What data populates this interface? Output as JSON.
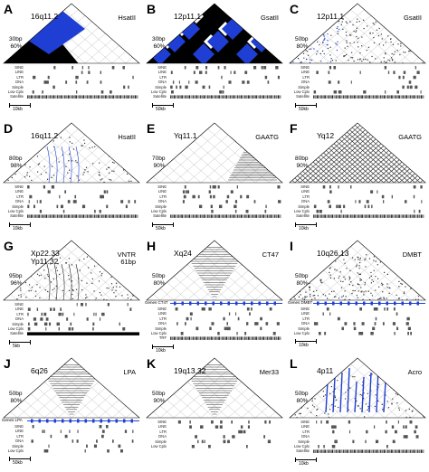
{
  "colors": {
    "highlight": "#1f3fd4",
    "dense": "#000000",
    "grid": "#888888"
  },
  "panels": [
    {
      "id": "A",
      "locus": "16q11.2",
      "motif": "HsatII",
      "monomer": "30bp",
      "identity": "60%",
      "scale": "10kb",
      "tracks": [
        "SINE",
        "LINE",
        "LTR",
        "DNA",
        "Simple",
        "Low Cplx",
        "Satellite"
      ],
      "genes": ""
    },
    {
      "id": "B",
      "locus": "12p11.1",
      "motif": "GsatII",
      "monomer": "30bp",
      "identity": "60%",
      "scale": "50kb",
      "tracks": [
        "SINE",
        "LINE",
        "LTR",
        "DNA",
        "Simple",
        "Low Cplx",
        "Satellite"
      ],
      "genes": ""
    },
    {
      "id": "C",
      "locus": "12p11.1",
      "motif": "GsatII",
      "monomer": "50bp",
      "identity": "80%",
      "scale": "50kb",
      "tracks": [
        "SINE",
        "LINE",
        "LTR",
        "DNA",
        "Simple",
        "Low Cplx",
        "Satellite"
      ],
      "genes": ""
    },
    {
      "id": "D",
      "locus": "16q11.2",
      "motif": "HsatII",
      "monomer": "80bp",
      "identity": "98%",
      "scale": "10kb",
      "tracks": [
        "SINE",
        "LINE",
        "LTR",
        "DNA",
        "Simple",
        "Low Cplx",
        "Satellite"
      ],
      "genes": ""
    },
    {
      "id": "E",
      "locus": "Yq11.1",
      "motif": "GAATG",
      "monomer": "70bp",
      "identity": "90%",
      "scale": "50kb",
      "tracks": [
        "SINE",
        "LINE",
        "LTR",
        "DNA",
        "Simple",
        "Low Cplx",
        "Satellite"
      ],
      "genes": ""
    },
    {
      "id": "F",
      "locus": "Yq12",
      "motif": "GAATG",
      "monomer": "80bp",
      "identity": "90%",
      "scale": "10kb",
      "tracks": [
        "SINE",
        "LINE",
        "LTR",
        "DNA",
        "Simple",
        "Low Cplx",
        "Satellite"
      ],
      "genes": ""
    },
    {
      "id": "G",
      "locus": "Xp22.33\nYp11.32",
      "motif": "VNTR\n61bp",
      "monomer": "95bp",
      "identity": "96%",
      "scale": "5kb",
      "tracks": [
        "SINE",
        "LINE",
        "LTR",
        "DNA",
        "Simple",
        "Low Cplx",
        "Satellite"
      ],
      "genes": ""
    },
    {
      "id": "H",
      "locus": "Xq24",
      "motif": "CT47",
      "monomer": "50bp",
      "identity": "80%",
      "scale": "10kb",
      "tracks": [
        "SINE",
        "LINE",
        "LTR",
        "DNA",
        "Simple",
        "Low Cplx",
        "TRF"
      ],
      "genes": "Genes CT47"
    },
    {
      "id": "I",
      "locus": "10q26.13",
      "motif": "DMBT",
      "monomer": "50bp",
      "identity": "80%",
      "scale": "10kb",
      "tracks": [
        "SINE",
        "LINE",
        "LTR",
        "DNA",
        "Simple",
        "Low Cplx"
      ],
      "genes": "Genes DMBT"
    },
    {
      "id": "J",
      "locus": "6q26",
      "motif": "LPA",
      "monomer": "50bp",
      "identity": "80%",
      "scale": "50kb",
      "tracks": [
        "SINE",
        "LINE",
        "LTR",
        "DNA",
        "Simple",
        "Low Cplx"
      ],
      "genes": "Genes LPA"
    },
    {
      "id": "K",
      "locus": "19q13.32",
      "motif": "Mer33",
      "monomer": "50bp",
      "identity": "90%",
      "scale": "",
      "tracks": [
        "SINE",
        "LINE",
        "LTR",
        "DNA",
        "Simple",
        "Low Cplx"
      ],
      "genes": ""
    },
    {
      "id": "L",
      "locus": "4p11",
      "motif": "Acro",
      "monomer": "50bp",
      "identity": "80%",
      "scale": "10kb",
      "tracks": [
        "SINE",
        "LINE",
        "LTR",
        "DNA",
        "Simple",
        "Low Cplx",
        "Satellite"
      ],
      "genes": ""
    }
  ]
}
